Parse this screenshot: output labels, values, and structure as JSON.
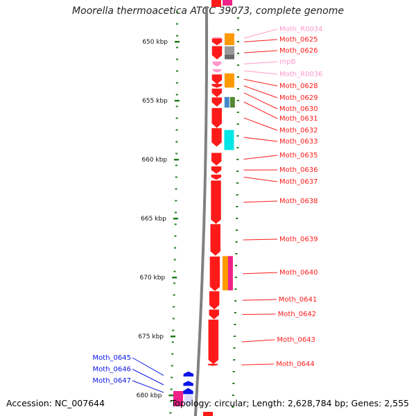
{
  "title": "Moorella thermoacetica ATCC 39073, complete genome",
  "footer": {
    "accession": "Accession: NC_007644",
    "topology": "Topology: circular; Length: 2,628,784 bp; Genes: 2,555"
  },
  "colors": {
    "cds": "#ff1a1a",
    "rna": "#ff99cc",
    "blue_gene": "#0a14e6",
    "axis": "#808080",
    "ticks": "#1e7a1e",
    "orange": "#ff9900",
    "cyan": "#00e5e5",
    "gray": "#999999",
    "dkgray": "#6a6a6a",
    "magenta": "#ee2288",
    "lblue": "#4488cc",
    "olive": "#558833"
  },
  "scale_ticks": [
    {
      "kbp": 650,
      "label": "650 kbp"
    },
    {
      "kbp": 655,
      "label": "655 kbp"
    },
    {
      "kbp": 660,
      "label": "660 kbp"
    },
    {
      "kbp": 665,
      "label": "665 kbp"
    },
    {
      "kbp": 670,
      "label": "670 kbp"
    },
    {
      "kbp": 675,
      "label": "675 kbp"
    },
    {
      "kbp": 680,
      "label": "680 kbp"
    }
  ],
  "genes": [
    {
      "label": "Moth_R0034",
      "type": "rna",
      "start": 649.65,
      "end": 649.75
    },
    {
      "label": "Moth_0625",
      "type": "cds",
      "start": 649.75,
      "end": 650.3
    },
    {
      "label": "Moth_0626",
      "type": "cds",
      "start": 650.4,
      "end": 651.5
    },
    {
      "label": "rnpB",
      "type": "rna",
      "start": 651.7,
      "end": 652.1
    },
    {
      "label": "Moth_R0036",
      "type": "rna",
      "start": 652.35,
      "end": 652.6
    },
    {
      "label": "Moth_0628",
      "type": "cds",
      "start": 652.8,
      "end": 653.6
    },
    {
      "label": "Moth_0629",
      "type": "cds",
      "start": 653.6,
      "end": 653.9
    },
    {
      "label": "Moth_0630",
      "type": "cds",
      "start": 654.0,
      "end": 654.7
    },
    {
      "label": "Moth_0631",
      "type": "cds",
      "start": 654.75,
      "end": 655.5
    },
    {
      "label": "Moth_0632",
      "type": "cds",
      "start": 655.65,
      "end": 657.3
    },
    {
      "label": "Moth_0633",
      "type": "cds",
      "start": 657.35,
      "end": 658.9
    },
    {
      "label": "Moth_0635",
      "type": "cds",
      "start": 659.45,
      "end": 660.5
    },
    {
      "label": "Moth_0636",
      "type": "cds",
      "start": 660.6,
      "end": 661.2
    },
    {
      "label": "Moth_0637",
      "type": "cds",
      "start": 661.3,
      "end": 661.7
    },
    {
      "label": "Moth_0638",
      "type": "cds",
      "start": 661.8,
      "end": 665.45
    },
    {
      "label": "Moth_0639",
      "type": "cds",
      "start": 665.5,
      "end": 668.15
    },
    {
      "label": "Moth_0640",
      "type": "cds",
      "start": 668.25,
      "end": 671.15
    },
    {
      "label": "Moth_0641",
      "type": "cds",
      "start": 671.2,
      "end": 672.7
    },
    {
      "label": "Moth_0642",
      "type": "cds",
      "start": 672.75,
      "end": 673.55
    },
    {
      "label": "Moth_0643",
      "type": "cds",
      "start": 673.6,
      "end": 677.35
    },
    {
      "label": "Moth_0644",
      "type": "cds",
      "start": 677.35,
      "end": 677.5
    },
    {
      "label": "Moth_0645",
      "type": "blue",
      "start": 678.4,
      "end": 678.0
    },
    {
      "label": "Moth_0646",
      "type": "blue",
      "start": 679.2,
      "end": 678.8
    },
    {
      "label": "Moth_0647",
      "type": "blue",
      "start": 679.9,
      "end": 679.4
    }
  ],
  "features": [
    {
      "start": 649.3,
      "end": 650.3,
      "color": "orange"
    },
    {
      "start": 650.4,
      "end": 651.1,
      "color": "gray"
    },
    {
      "start": 651.1,
      "end": 651.5,
      "color": "dkgray"
    },
    {
      "start": 652.7,
      "end": 653.9,
      "color": "orange"
    },
    {
      "start": 654.7,
      "end": 655.6,
      "color": "lblue"
    },
    {
      "start": 654.7,
      "end": 655.6,
      "color": "olive"
    },
    {
      "start": 657.5,
      "end": 659.2,
      "color": "cyan"
    },
    {
      "start": 668.2,
      "end": 671.1,
      "color": "orange"
    },
    {
      "start": 668.2,
      "end": 671.1,
      "color": "magenta"
    }
  ]
}
